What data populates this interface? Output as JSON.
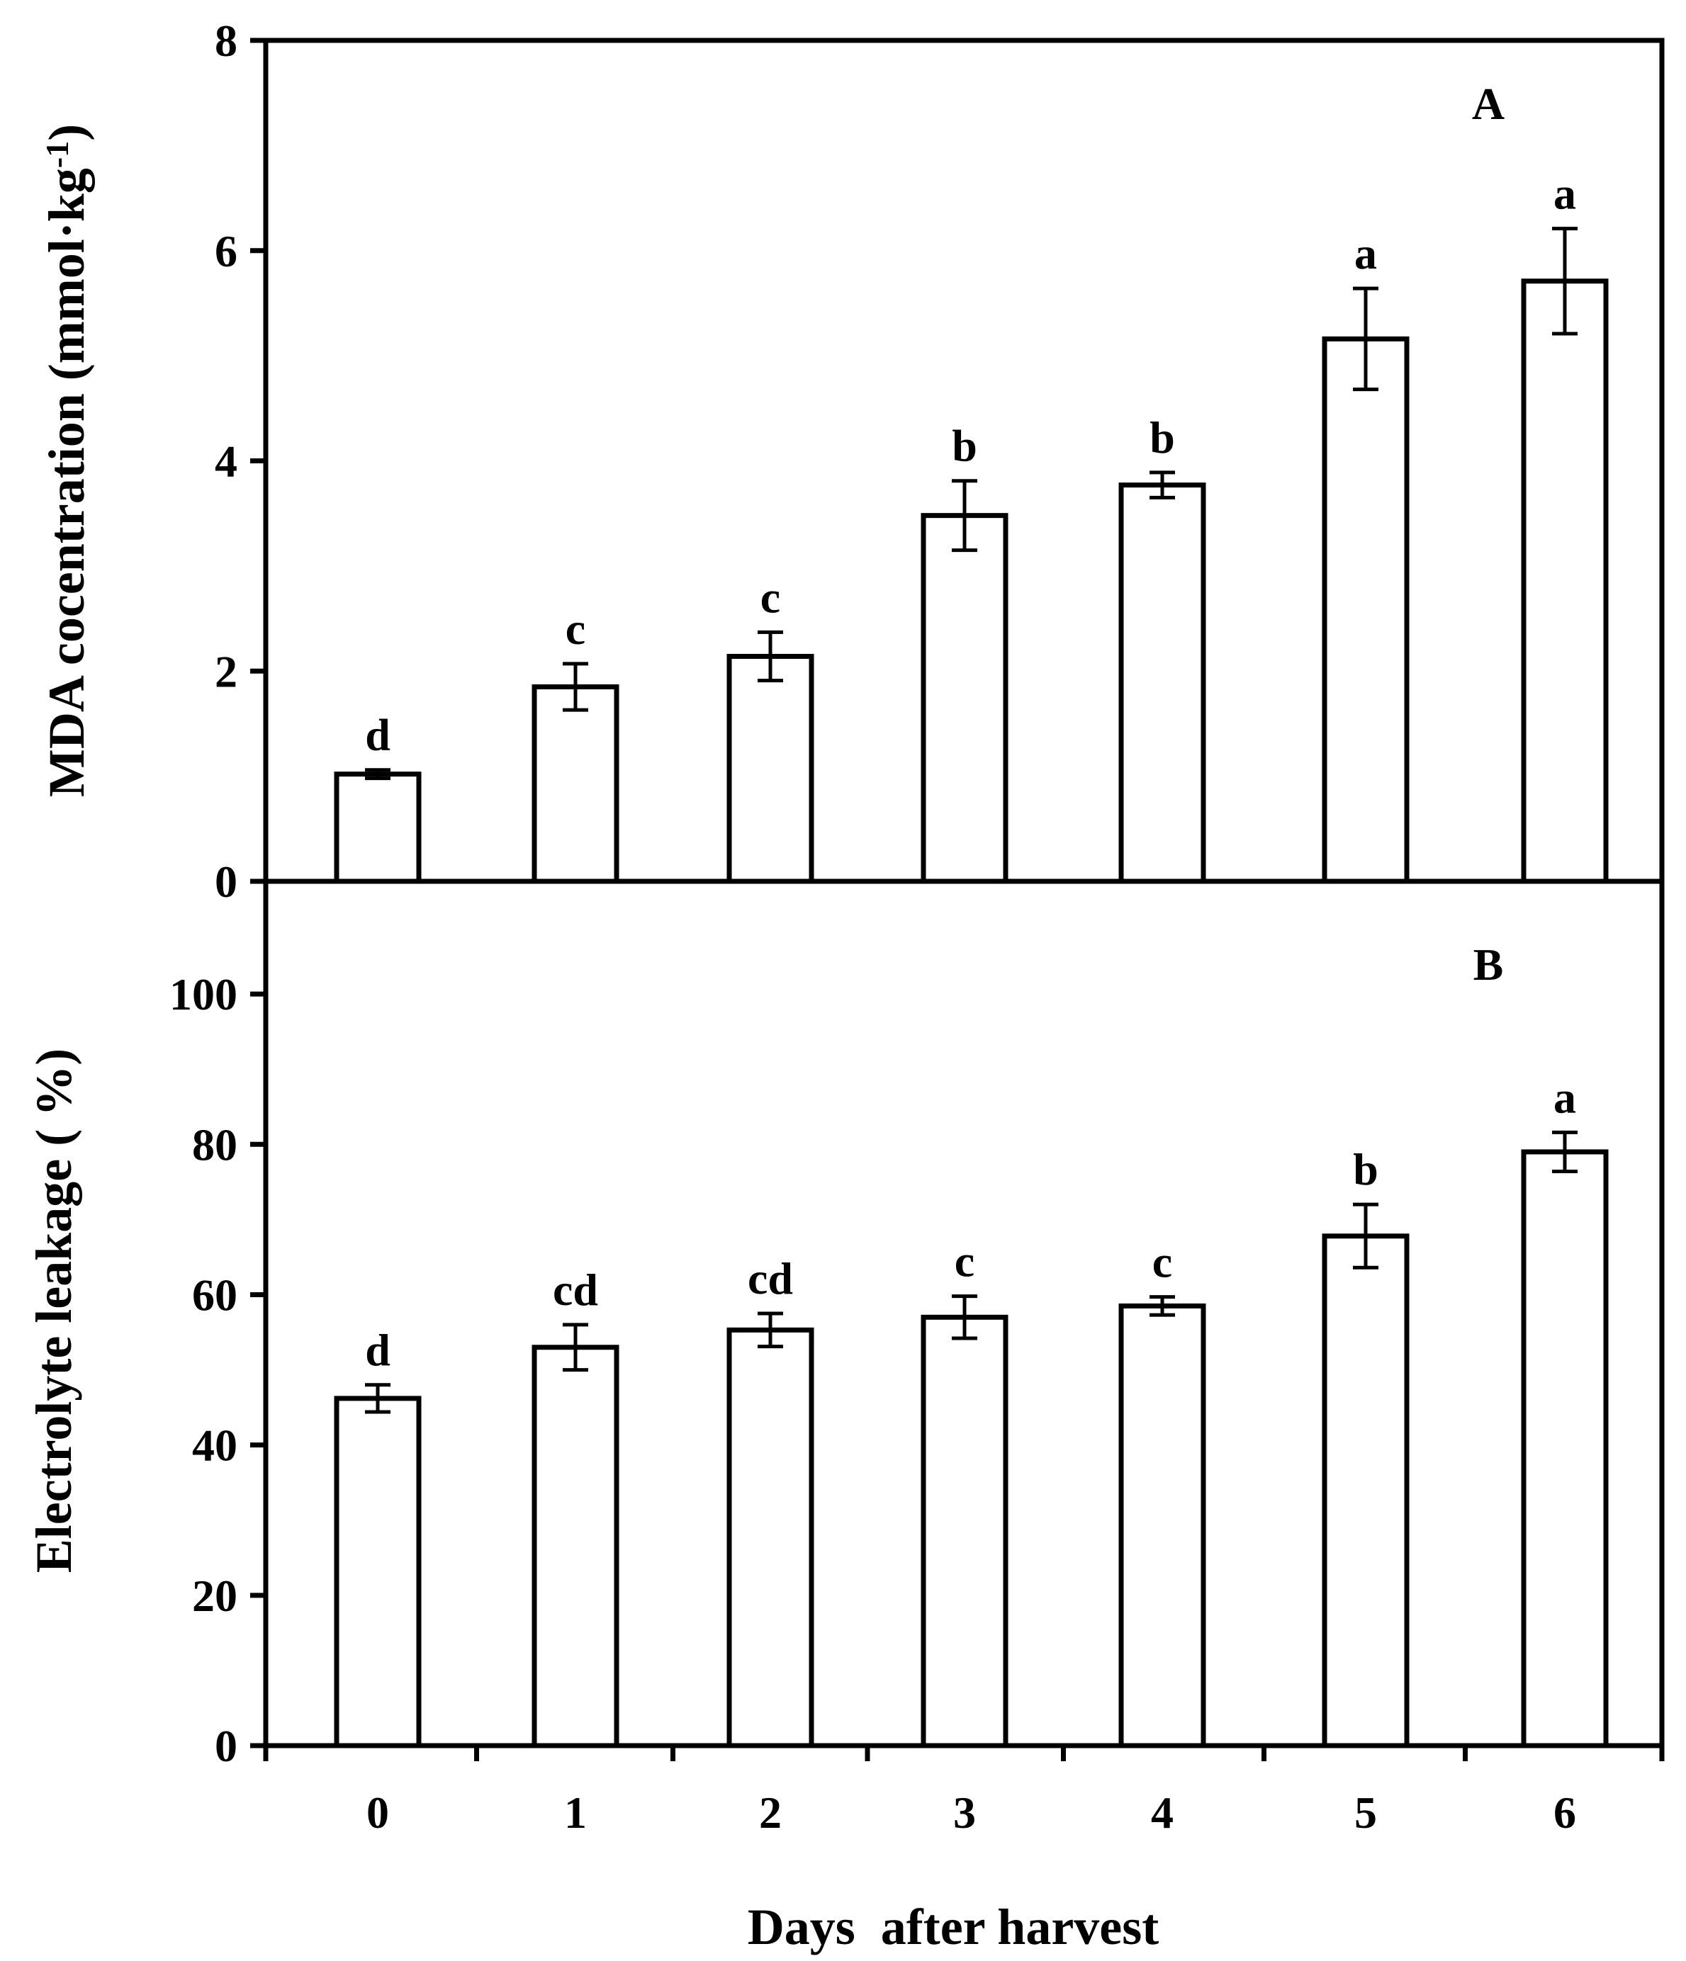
{
  "figure": {
    "xlabel": "Days  after harvest",
    "categories": [
      "0",
      "1",
      "2",
      "3",
      "4",
      "5",
      "6"
    ]
  },
  "chart_data": [
    {
      "type": "bar",
      "panel": "A",
      "title": "",
      "xlabel": "Days  after harvest",
      "ylabel": "MDA cocentration (mmol·kg",
      "ylabel_superscript": "-1",
      "ylabel_close": ")",
      "ylim": [
        0,
        8
      ],
      "yticks": [
        0,
        2,
        4,
        6,
        8
      ],
      "categories": [
        "0",
        "1",
        "2",
        "3",
        "4",
        "5",
        "6"
      ],
      "values": [
        1.02,
        1.85,
        2.14,
        3.48,
        3.77,
        5.16,
        5.71
      ],
      "errors": [
        0.04,
        0.22,
        0.23,
        0.33,
        0.12,
        0.48,
        0.5
      ],
      "significance": [
        "d",
        "c",
        "c",
        "b",
        "b",
        "a",
        "a"
      ],
      "grid": false
    },
    {
      "type": "bar",
      "panel": "B",
      "title": "",
      "xlabel": "Days  after harvest",
      "ylabel": "Electrolyte  leakage ( %)",
      "ylim": [
        0,
        115
      ],
      "yticks": [
        0,
        20,
        40,
        60,
        80,
        100
      ],
      "categories": [
        "0",
        "1",
        "2",
        "3",
        "4",
        "5",
        "6"
      ],
      "values": [
        46.2,
        53.0,
        55.3,
        57.0,
        58.5,
        67.8,
        79.0
      ],
      "errors": [
        1.8,
        3.0,
        2.2,
        2.8,
        1.2,
        4.2,
        2.6
      ],
      "significance": [
        "d",
        "cd",
        "cd",
        "c",
        "c",
        "b",
        "a"
      ],
      "grid": false
    }
  ]
}
